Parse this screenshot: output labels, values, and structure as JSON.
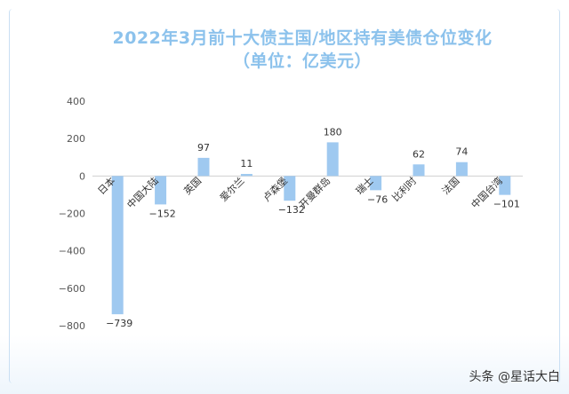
{
  "title_line1": "2022年3月前十大债主国/地区持有美债仓位变化",
  "title_line2": "（单位：亿美元）",
  "watermark": "头条 @星话大白",
  "chart_data": {
    "type": "bar",
    "categories": [
      "日本",
      "中国大陆",
      "英国",
      "爱尔兰",
      "卢森堡",
      "开曼群岛",
      "瑞士",
      "比利时",
      "法国",
      "中国台湾"
    ],
    "values": [
      -739,
      -152,
      97,
      11,
      -132,
      180,
      -76,
      62,
      74,
      -101
    ],
    "data_labels": [
      "−739",
      "−152",
      "97",
      "11",
      "−132",
      "180",
      "−76",
      "62",
      "74",
      "−101"
    ],
    "yticks": [
      "400",
      "200",
      "0",
      "−200",
      "−400",
      "−600",
      "−800"
    ],
    "ytick_values": [
      400,
      200,
      0,
      -200,
      -400,
      -600,
      -800
    ],
    "ylim": [
      -800,
      400
    ],
    "bar_color": "#9fc9f0",
    "grid": false
  }
}
